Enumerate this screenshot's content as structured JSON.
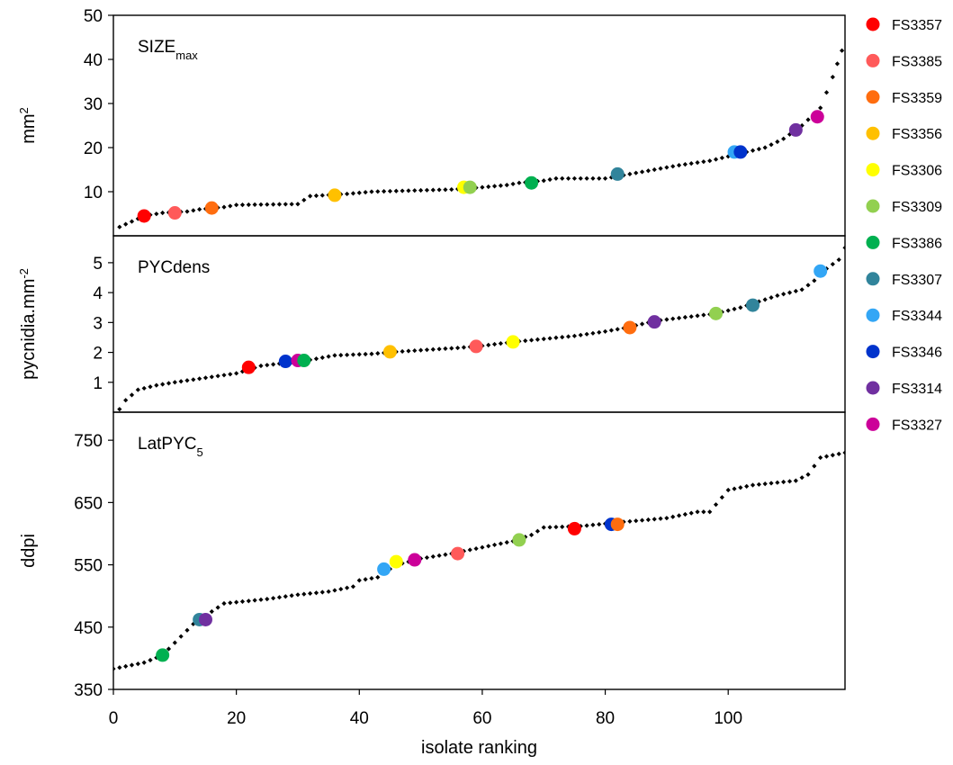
{
  "chart_data": {
    "type": "scatter",
    "x_axis": {
      "label": "isolate ranking",
      "range": [
        0,
        119
      ],
      "ticks": [
        0,
        20,
        40,
        60,
        80,
        100
      ]
    },
    "legend": {
      "placement": "right",
      "entries": [
        {
          "name": "FS3357",
          "color": "#ff0000"
        },
        {
          "name": "FS3385",
          "color": "#ff5a5a"
        },
        {
          "name": "FS3359",
          "color": "#ff6d0f"
        },
        {
          "name": "FS3356",
          "color": "#ffc000"
        },
        {
          "name": "FS3306",
          "color": "#ffff00"
        },
        {
          "name": "FS3309",
          "color": "#92d050"
        },
        {
          "name": "FS3386",
          "color": "#00b050"
        },
        {
          "name": "FS3307",
          "color": "#31849b"
        },
        {
          "name": "FS3344",
          "color": "#33a6f5"
        },
        {
          "name": "FS3346",
          "color": "#0033cc"
        },
        {
          "name": "FS3314",
          "color": "#7030a0"
        },
        {
          "name": "FS3327",
          "color": "#cc0099"
        }
      ]
    },
    "panels": [
      {
        "label_main": "SIZE",
        "label_sub": "max",
        "label_sub_position": "sub",
        "ylabel_main": "mm",
        "ylabel_sup": "2",
        "ylim": [
          0,
          50
        ],
        "yticks": [
          "10",
          "20",
          "30",
          "40",
          "50"
        ],
        "ytick_values": [
          10,
          20,
          30,
          40,
          50
        ],
        "curve": [
          [
            1,
            2
          ],
          [
            5,
            4.5
          ],
          [
            8,
            5.2
          ],
          [
            12,
            5.5
          ],
          [
            14,
            6
          ],
          [
            18,
            6.5
          ],
          [
            20,
            7
          ],
          [
            30,
            7.2
          ],
          [
            32,
            9
          ],
          [
            38,
            9.5
          ],
          [
            42,
            10
          ],
          [
            55,
            10.5
          ],
          [
            60,
            11
          ],
          [
            64,
            11.5
          ],
          [
            66,
            12
          ],
          [
            70,
            12.5
          ],
          [
            72,
            13
          ],
          [
            80,
            13
          ],
          [
            84,
            14
          ],
          [
            88,
            15
          ],
          [
            92,
            16
          ],
          [
            97,
            17
          ],
          [
            100,
            18
          ],
          [
            103,
            19
          ],
          [
            106,
            20
          ],
          [
            109,
            22
          ],
          [
            112,
            25
          ],
          [
            115,
            29
          ],
          [
            117,
            36
          ],
          [
            118.5,
            42
          ]
        ],
        "highlights": [
          {
            "name": "FS3357",
            "x": 5,
            "y": 4.5
          },
          {
            "name": "FS3385",
            "x": 10,
            "y": 5.2
          },
          {
            "name": "FS3359",
            "x": 16,
            "y": 6.3
          },
          {
            "name": "FS3356",
            "x": 36,
            "y": 9.2
          },
          {
            "name": "FS3306",
            "x": 57,
            "y": 11
          },
          {
            "name": "FS3309",
            "x": 58,
            "y": 11
          },
          {
            "name": "FS3386",
            "x": 68,
            "y": 12
          },
          {
            "name": "FS3307",
            "x": 82,
            "y": 14
          },
          {
            "name": "FS3344",
            "x": 101,
            "y": 19
          },
          {
            "name": "FS3346",
            "x": 102,
            "y": 19
          },
          {
            "name": "FS3314",
            "x": 111,
            "y": 24
          },
          {
            "name": "FS3327",
            "x": 114.5,
            "y": 27
          }
        ]
      },
      {
        "label_main": "PYCdens",
        "label_sub": "",
        "label_sub_position": "sub",
        "ylabel_main": "pycnidia.mm",
        "ylabel_sup": "-2",
        "ylim": [
          0,
          5.9
        ],
        "yticks": [
          "1",
          "2",
          "3",
          "4",
          "5"
        ],
        "ytick_values": [
          1,
          2,
          3,
          4,
          5
        ],
        "curve": [
          [
            1,
            0.1
          ],
          [
            2,
            0.4
          ],
          [
            4,
            0.75
          ],
          [
            7,
            0.9
          ],
          [
            10,
            1
          ],
          [
            15,
            1.15
          ],
          [
            20,
            1.3
          ],
          [
            24,
            1.55
          ],
          [
            28,
            1.65
          ],
          [
            32,
            1.75
          ],
          [
            36,
            1.9
          ],
          [
            42,
            1.95
          ],
          [
            46,
            2.02
          ],
          [
            52,
            2.1
          ],
          [
            56,
            2.15
          ],
          [
            60,
            2.22
          ],
          [
            65,
            2.35
          ],
          [
            70,
            2.45
          ],
          [
            75,
            2.55
          ],
          [
            80,
            2.7
          ],
          [
            84,
            2.85
          ],
          [
            88,
            3.05
          ],
          [
            92,
            3.15
          ],
          [
            98,
            3.3
          ],
          [
            102,
            3.5
          ],
          [
            105,
            3.7
          ],
          [
            108,
            3.9
          ],
          [
            112,
            4.1
          ],
          [
            114,
            4.4
          ],
          [
            116,
            4.8
          ],
          [
            118,
            5.1
          ],
          [
            119,
            5.5
          ]
        ],
        "highlights": [
          {
            "name": "FS3357",
            "x": 22,
            "y": 1.5
          },
          {
            "name": "FS3346",
            "x": 28,
            "y": 1.7
          },
          {
            "name": "FS3327",
            "x": 30,
            "y": 1.73
          },
          {
            "name": "FS3386",
            "x": 31,
            "y": 1.73
          },
          {
            "name": "FS3356",
            "x": 45,
            "y": 2.02
          },
          {
            "name": "FS3385",
            "x": 59,
            "y": 2.2
          },
          {
            "name": "FS3306",
            "x": 65,
            "y": 2.35
          },
          {
            "name": "FS3359",
            "x": 84,
            "y": 2.83
          },
          {
            "name": "FS3314",
            "x": 88,
            "y": 3.02
          },
          {
            "name": "FS3309",
            "x": 98,
            "y": 3.3
          },
          {
            "name": "FS3307",
            "x": 104,
            "y": 3.58
          },
          {
            "name": "FS3344",
            "x": 115,
            "y": 4.72
          }
        ]
      },
      {
        "label_main": "LatPYC",
        "label_sub": "5",
        "label_sub_position": "sub",
        "ylabel_main": "ddpi",
        "ylabel_sup": "",
        "ylim": [
          350,
          795
        ],
        "yticks": [
          "350",
          "450",
          "550",
          "650",
          "750"
        ],
        "ytick_values": [
          350,
          450,
          550,
          650,
          750
        ],
        "curve": [
          [
            0,
            383
          ],
          [
            5,
            393
          ],
          [
            8,
            405
          ],
          [
            10,
            425
          ],
          [
            13,
            455
          ],
          [
            16,
            475
          ],
          [
            18,
            488
          ],
          [
            25,
            495
          ],
          [
            30,
            502
          ],
          [
            35,
            507
          ],
          [
            39,
            515
          ],
          [
            40,
            525
          ],
          [
            43,
            530
          ],
          [
            46,
            550
          ],
          [
            50,
            560
          ],
          [
            55,
            568
          ],
          [
            60,
            578
          ],
          [
            65,
            588
          ],
          [
            68,
            598
          ],
          [
            70,
            610
          ],
          [
            76,
            612
          ],
          [
            82,
            618
          ],
          [
            90,
            625
          ],
          [
            95,
            635
          ],
          [
            97,
            635
          ],
          [
            100,
            670
          ],
          [
            104,
            678
          ],
          [
            111,
            685
          ],
          [
            113,
            695
          ],
          [
            115,
            722
          ],
          [
            119,
            730
          ]
        ],
        "highlights": [
          {
            "name": "FS3386",
            "x": 8,
            "y": 405
          },
          {
            "name": "FS3307",
            "x": 14,
            "y": 462
          },
          {
            "name": "FS3314",
            "x": 15,
            "y": 462
          },
          {
            "name": "FS3344",
            "x": 44,
            "y": 543
          },
          {
            "name": "FS3306",
            "x": 46,
            "y": 555
          },
          {
            "name": "FS3327",
            "x": 49,
            "y": 558
          },
          {
            "name": "FS3385",
            "x": 56,
            "y": 568
          },
          {
            "name": "FS3309",
            "x": 66,
            "y": 590
          },
          {
            "name": "FS3357",
            "x": 75,
            "y": 608
          },
          {
            "name": "FS3346",
            "x": 81,
            "y": 615
          },
          {
            "name": "FS3359",
            "x": 82,
            "y": 615
          }
        ]
      }
    ]
  }
}
